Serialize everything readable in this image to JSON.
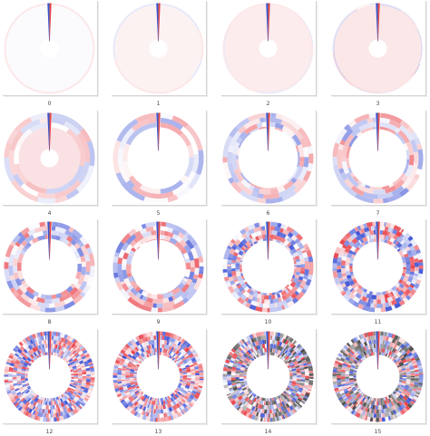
{
  "panels": [
    {
      "label": "0"
    },
    {
      "label": "1"
    },
    {
      "label": "2"
    },
    {
      "label": "3"
    },
    {
      "label": "4"
    },
    {
      "label": "5"
    },
    {
      "label": "6"
    },
    {
      "label": "7"
    },
    {
      "label": "8"
    },
    {
      "label": "9"
    },
    {
      "label": "10"
    },
    {
      "label": "11"
    },
    {
      "label": "12"
    },
    {
      "label": "13"
    },
    {
      "label": "14"
    },
    {
      "label": "15"
    }
  ],
  "colors": {
    "positive": "#e8434b",
    "negative": "#3d52d5",
    "pale_positive": "#f6c9cc",
    "pale_negative": "#c8cff5",
    "dark": "#333333"
  }
}
